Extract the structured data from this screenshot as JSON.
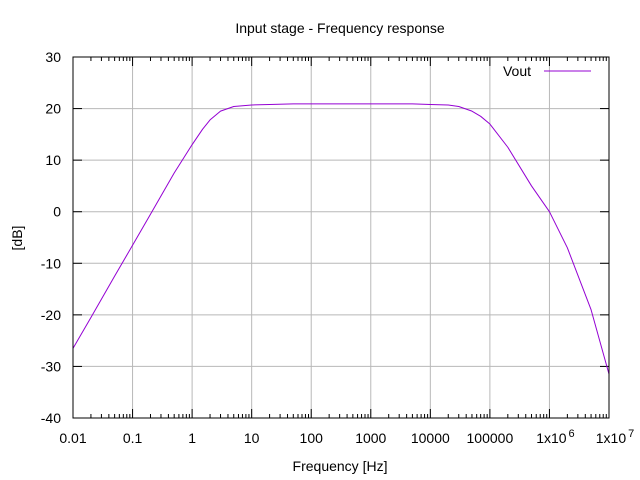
{
  "chart_data": {
    "type": "line",
    "title": "Input stage - Frequency response",
    "xlabel": "Frequency [Hz]",
    "ylabel": "[dB]",
    "x_scale": "log",
    "xlim": [
      0.01,
      10000000
    ],
    "ylim": [
      -40,
      30
    ],
    "grid": true,
    "legend_position": "top-right",
    "x_ticks": [
      {
        "value": 0.01,
        "label": "0.01"
      },
      {
        "value": 0.1,
        "label": "0.1"
      },
      {
        "value": 1,
        "label": "1"
      },
      {
        "value": 10,
        "label": "10"
      },
      {
        "value": 100,
        "label": "100"
      },
      {
        "value": 1000,
        "label": "1000"
      },
      {
        "value": 10000,
        "label": "10000"
      },
      {
        "value": 100000,
        "label": "100000"
      },
      {
        "value": 1000000,
        "label": "1x10",
        "exp": "6"
      },
      {
        "value": 10000000,
        "label": "1x10",
        "exp": "7"
      }
    ],
    "y_ticks": [
      30,
      20,
      10,
      0,
      -10,
      -20,
      -30,
      -40
    ],
    "series": [
      {
        "name": "Vout",
        "color": "#9400d3",
        "x": [
          0.01,
          0.02,
          0.05,
          0.1,
          0.2,
          0.5,
          1,
          1.5,
          2,
          3,
          5,
          10,
          20,
          50,
          100,
          1000,
          5000,
          10000,
          20000,
          30000,
          50000,
          70000,
          100000,
          200000,
          500000,
          1000000,
          2000000,
          5000000,
          10000000
        ],
        "y": [
          -26.5,
          -20.5,
          -12.5,
          -6.5,
          -0.5,
          7.5,
          13,
          16,
          17.8,
          19.5,
          20.4,
          20.7,
          20.8,
          20.9,
          20.9,
          20.9,
          20.9,
          20.8,
          20.7,
          20.4,
          19.5,
          18.5,
          17,
          12.5,
          5,
          0,
          -7,
          -19,
          -31.5
        ]
      }
    ]
  }
}
